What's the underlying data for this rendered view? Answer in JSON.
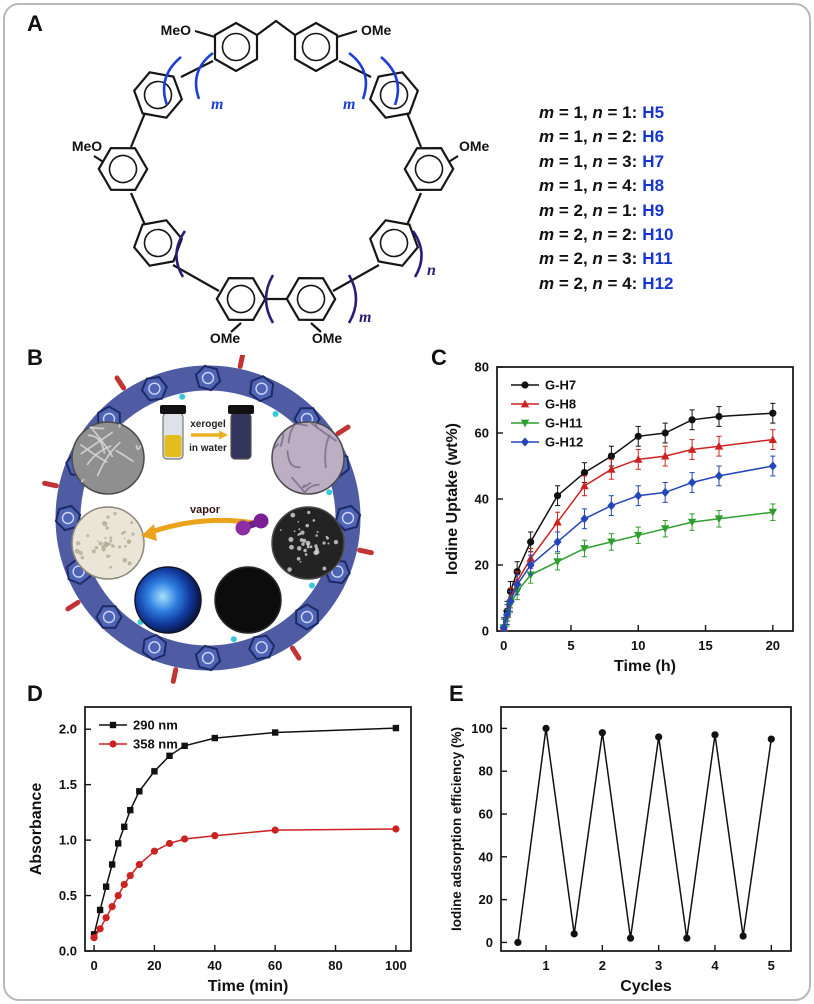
{
  "panel_labels": [
    "A",
    "B",
    "C",
    "D",
    "E"
  ],
  "panel_a": {
    "ome": [
      "MeO",
      "OMe",
      "MeO",
      "OMe",
      "OMe",
      "OMe"
    ],
    "brackets": {
      "m_left": "m",
      "m_right": "m",
      "m_bottom": "m",
      "n_bottom": "n"
    },
    "name_color": "#1535cd",
    "legend": [
      {
        "cond": "m = 1, n = 1:",
        "name": "H5"
      },
      {
        "cond": "m = 1, n = 2:",
        "name": "H6"
      },
      {
        "cond": "m = 1, n = 3:",
        "name": "H7"
      },
      {
        "cond": "m = 1, n = 4:",
        "name": "H8"
      },
      {
        "cond": "m = 2, n = 1:",
        "name": "H9"
      },
      {
        "cond": "m = 2, n = 2:",
        "name": "H10"
      },
      {
        "cond": "m = 2, n = 3:",
        "name": "H11"
      },
      {
        "cond": "m = 2, n = 4:",
        "name": "H12"
      }
    ]
  },
  "panel_b": {
    "xerogel": "xerogel",
    "in_water": "in water",
    "vapor": "vapor"
  },
  "chart_data": [
    {
      "type": "line",
      "title": "",
      "xlabel": "Time (h)",
      "ylabel": "Iodine Uptake (wt%)",
      "xlim": [
        -0.5,
        21.5
      ],
      "ylim": [
        0,
        80
      ],
      "xticks": [
        0,
        5,
        10,
        15,
        20
      ],
      "xtick_labels": [
        "0",
        "5",
        "10",
        "15",
        "20"
      ],
      "yticks": [
        0,
        20,
        40,
        60,
        80
      ],
      "ytick_labels": [
        "0",
        "20",
        "40",
        "60",
        "80"
      ],
      "grid": false,
      "legend": true,
      "legend_position": "top-left",
      "x": [
        0,
        0.25,
        0.5,
        1,
        2,
        4,
        6,
        8,
        10,
        12,
        14,
        16,
        20
      ],
      "series": [
        {
          "name": "G-H7",
          "color": "#111111",
          "marker": "circle",
          "yerr": 3,
          "values": [
            1,
            6,
            12,
            18,
            27,
            41,
            48,
            53,
            59,
            60,
            64,
            65,
            66
          ]
        },
        {
          "name": "G-H8",
          "color": "#cc2222",
          "marker": "triangle-up",
          "yerr": 3,
          "values": [
            1,
            5,
            10,
            15,
            22,
            33,
            44,
            49,
            52,
            53,
            55,
            56,
            58
          ]
        },
        {
          "name": "G-H11",
          "color": "#2e9e2e",
          "marker": "triangle-down",
          "yerr": 2.5,
          "values": [
            1,
            4,
            8,
            12,
            17,
            21,
            25,
            27,
            29,
            31,
            33,
            34,
            36
          ]
        },
        {
          "name": "G-H12",
          "color": "#2447b8",
          "marker": "diamond",
          "yerr": 3,
          "values": [
            1,
            5,
            9,
            14,
            20,
            27,
            34,
            38,
            41,
            42,
            45,
            47,
            50
          ]
        }
      ]
    },
    {
      "type": "line",
      "title": "",
      "xlabel": "Time (min)",
      "ylabel": "Absorbance",
      "xlim": [
        -3,
        105
      ],
      "ylim": [
        0,
        2.2
      ],
      "xticks": [
        0,
        20,
        40,
        60,
        80,
        100
      ],
      "xtick_labels": [
        "0",
        "20",
        "40",
        "60",
        "80",
        "100"
      ],
      "yticks": [
        0,
        0.5,
        1,
        1.5,
        2
      ],
      "ytick_labels": [
        "0.0",
        "0.5",
        "1.0",
        "1.5",
        "2.0"
      ],
      "grid": false,
      "legend": true,
      "legend_position": "top-left",
      "x": [
        0,
        2,
        4,
        6,
        8,
        10,
        12,
        15,
        20,
        25,
        30,
        40,
        60,
        100
      ],
      "series": [
        {
          "name": "290 nm",
          "color": "#111111",
          "marker": "square",
          "values": [
            0.15,
            0.37,
            0.58,
            0.78,
            0.97,
            1.12,
            1.27,
            1.44,
            1.62,
            1.76,
            1.85,
            1.92,
            1.97,
            2.01
          ]
        },
        {
          "name": "358 nm",
          "color": "#cc2222",
          "marker": "circle",
          "values": [
            0.12,
            0.2,
            0.3,
            0.4,
            0.5,
            0.6,
            0.68,
            0.78,
            0.9,
            0.97,
            1.01,
            1.04,
            1.09,
            1.1
          ]
        }
      ]
    },
    {
      "type": "line",
      "title": "",
      "xlabel": "Cycles",
      "ylabel": "Iodine adsorption efficiency (%)",
      "xlim": [
        0.2,
        5.35
      ],
      "ylim": [
        -4,
        110
      ],
      "xticks": [
        1,
        2,
        3,
        4,
        5
      ],
      "xtick_labels": [
        "1",
        "2",
        "3",
        "4",
        "5"
      ],
      "yticks": [
        0,
        20,
        40,
        60,
        80,
        100
      ],
      "ytick_labels": [
        "0",
        "20",
        "40",
        "60",
        "80",
        "100"
      ],
      "grid": false,
      "legend": false,
      "x": [
        0.5,
        1,
        1.5,
        2,
        2.5,
        3,
        3.5,
        4,
        4.5,
        5
      ],
      "series": [
        {
          "name": "Iodine adsorption efficiency",
          "color": "#111111",
          "marker": "circle",
          "values": [
            0,
            100,
            4,
            98,
            2,
            96,
            2,
            97,
            3,
            95
          ]
        }
      ]
    }
  ]
}
